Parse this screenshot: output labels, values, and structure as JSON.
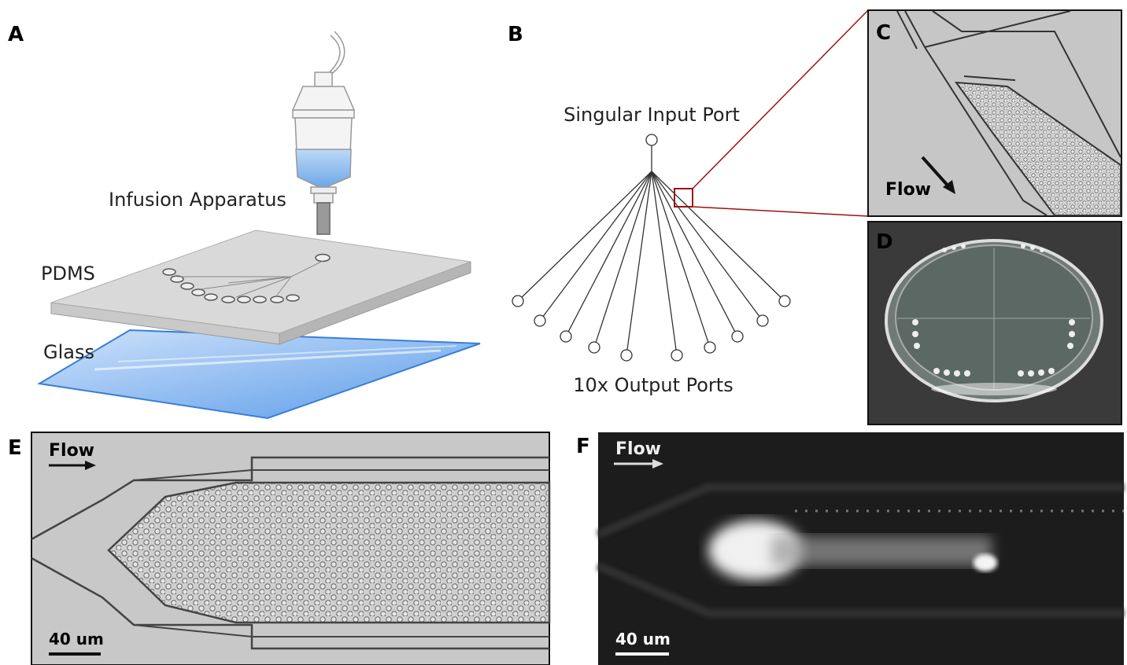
{
  "panels": [
    {
      "label": "A",
      "annotations": [
        "Infusion Apparatus",
        "PDMS",
        "Glass"
      ]
    },
    {
      "label": "B",
      "annotations": [
        "Singular Input Port",
        "10x Output Ports"
      ]
    },
    {
      "label": "C",
      "annotations": [
        "Flow"
      ]
    },
    {
      "label": "D"
    },
    {
      "label": "E",
      "annotations": [
        "Flow"
      ],
      "scale_bar": "40 um"
    },
    {
      "label": "F",
      "annotations": [
        "Flow"
      ],
      "scale_bar": "40 um"
    }
  ]
}
